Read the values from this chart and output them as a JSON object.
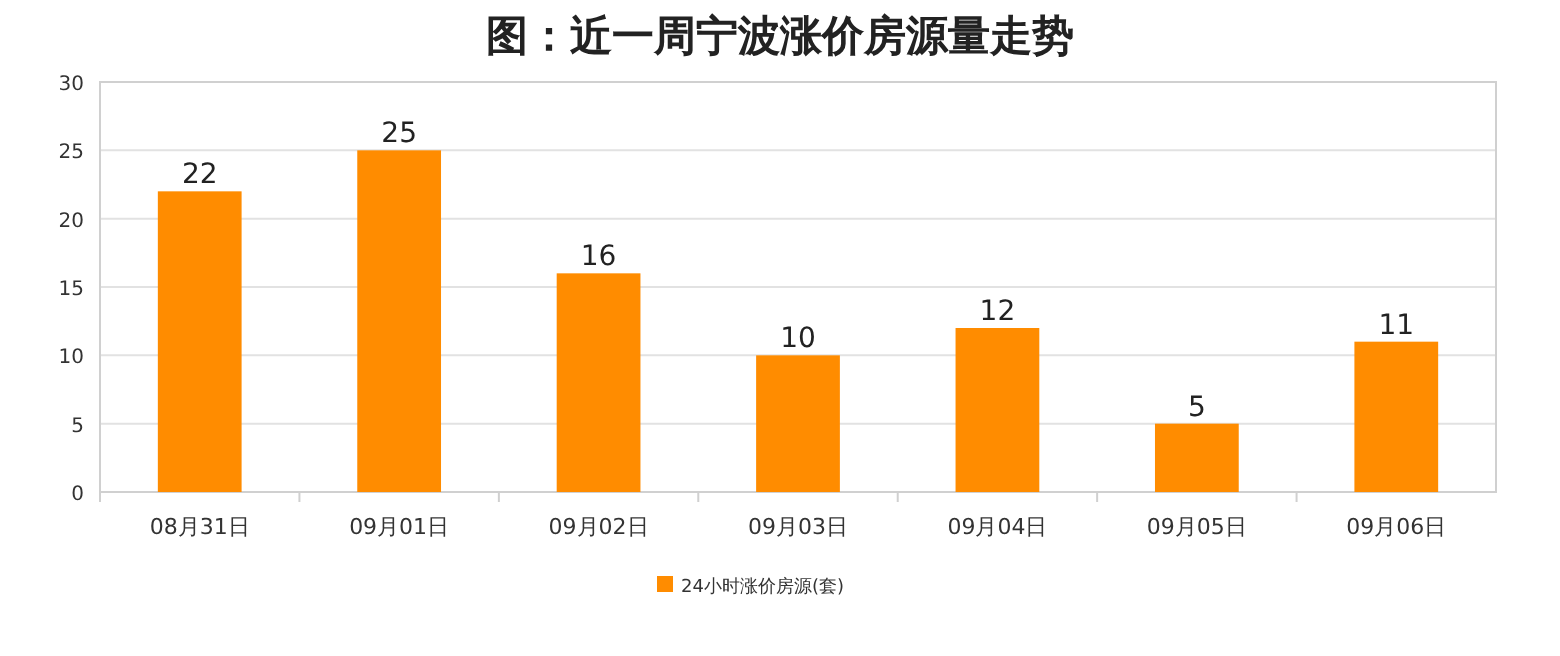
{
  "chart_data": {
    "type": "bar",
    "title": "图：近一周宁波涨价房源量走势",
    "categories": [
      "08月31日",
      "09月01日",
      "09月02日",
      "09月03日",
      "09月04日",
      "09月05日",
      "09月06日"
    ],
    "series": [
      {
        "name": "24小时涨价房源(套)",
        "color": "#ff8c00",
        "values": [
          22,
          25,
          16,
          10,
          12,
          5,
          11
        ]
      }
    ],
    "ylim": [
      0,
      30
    ],
    "yticks": [
      0,
      5,
      10,
      15,
      20,
      25,
      30
    ],
    "grid": "y",
    "legend": "bottom",
    "data_labels": true
  }
}
